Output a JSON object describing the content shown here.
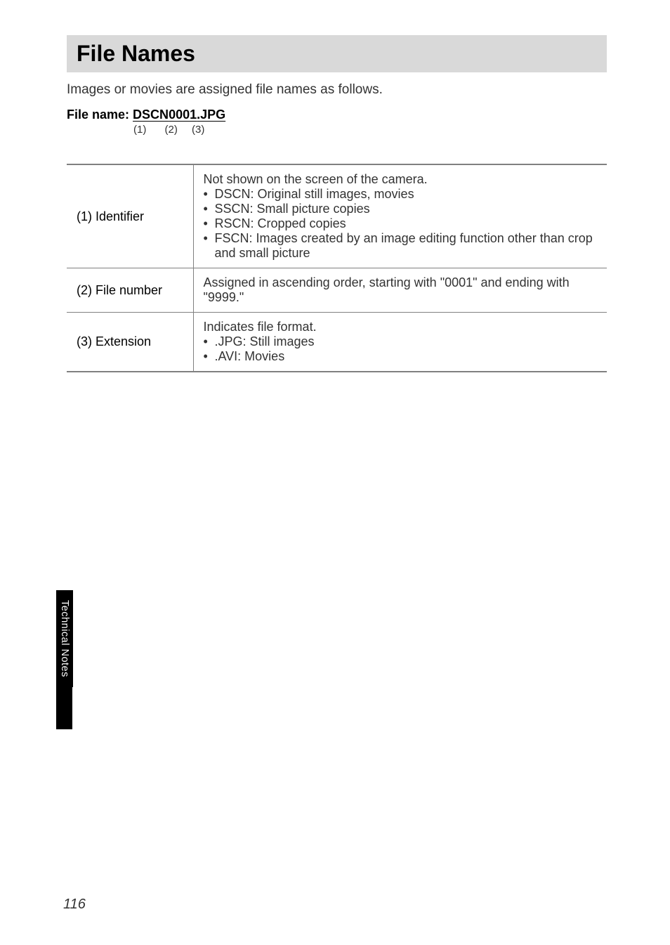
{
  "heading": "File Names",
  "intro": "Images or movies are assigned file names as follows.",
  "filename": {
    "label": "File name:",
    "part1": "DSCN",
    "part2": "0001",
    "part3": ".JPG",
    "idx1": "(1)",
    "idx2": "(2)",
    "idx3": "(3)"
  },
  "rows": {
    "identifier": {
      "key": "(1) Identifier",
      "line1": "Not shown on the screen of the camera.",
      "b1": "DSCN: Original still images, movies",
      "b2": "SSCN: Small picture copies",
      "b3": "RSCN: Cropped copies",
      "b4": "FSCN: Images created by an image editing function other than crop and small picture"
    },
    "filenumber": {
      "key": "(2) File number",
      "val": "Assigned in ascending order, starting with \"0001\" and ending with \"9999.\""
    },
    "extension": {
      "key": "(3) Extension",
      "line1": "Indicates file format.",
      "b1": ".JPG: Still images",
      "b2": ".AVI: Movies"
    }
  },
  "sidetab": "Technical Notes",
  "pagenum": "116"
}
